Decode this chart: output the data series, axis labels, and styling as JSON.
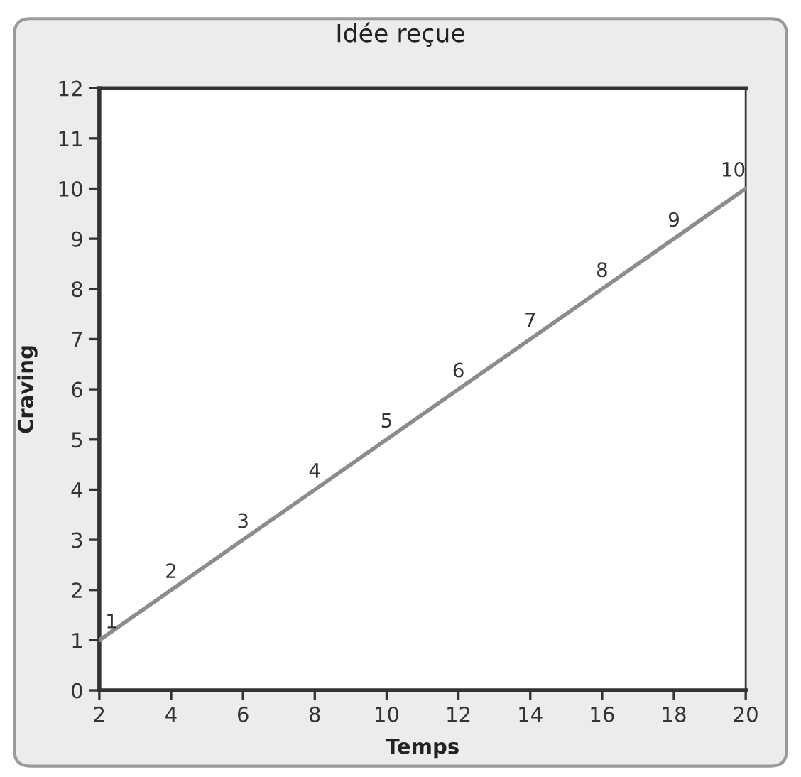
{
  "chart_data": {
    "type": "line",
    "title": "Idée reçue",
    "xlabel": "Temps",
    "ylabel": "Craving",
    "x": [
      2,
      4,
      6,
      8,
      10,
      12,
      14,
      16,
      18,
      20
    ],
    "series": [
      {
        "color": "#8c8c8c",
        "values": [
          1,
          2,
          3,
          4,
          5,
          6,
          7,
          8,
          9,
          10
        ]
      }
    ],
    "xlim": [
      2,
      20
    ],
    "ylim": [
      0,
      12
    ],
    "xticks": [
      2,
      4,
      6,
      8,
      10,
      12,
      14,
      16,
      18,
      20
    ],
    "yticks": [
      0,
      1,
      2,
      3,
      4,
      5,
      6,
      7,
      8,
      9,
      10,
      11,
      12
    ],
    "data_labels": true,
    "line_style": "solid"
  }
}
